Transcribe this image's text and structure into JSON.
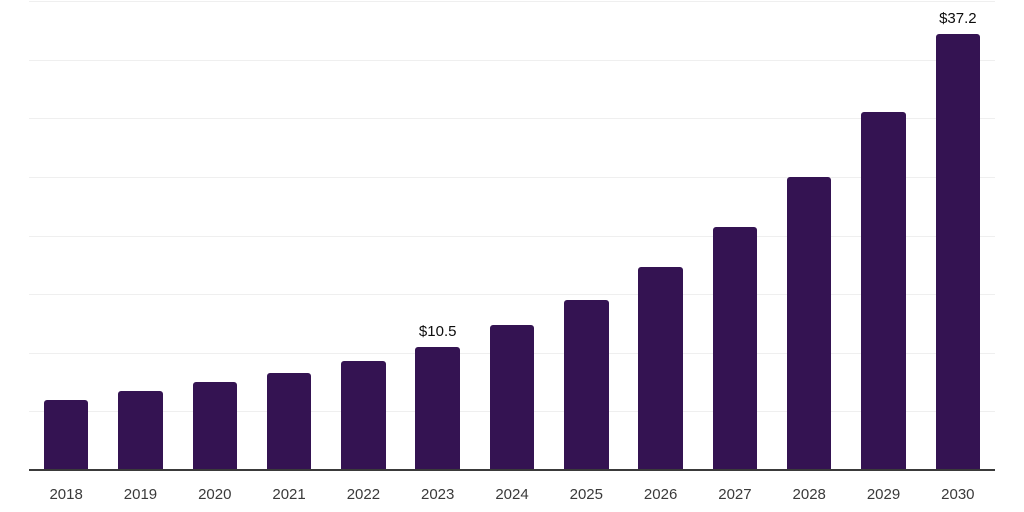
{
  "chart_data": {
    "type": "bar",
    "title": "",
    "categories": [
      "2018",
      "2019",
      "2020",
      "2021",
      "2022",
      "2023",
      "2024",
      "2025",
      "2026",
      "2027",
      "2028",
      "2029",
      "2030"
    ],
    "values": [
      6.0,
      6.7,
      7.5,
      8.3,
      9.3,
      10.5,
      12.4,
      14.5,
      17.3,
      20.7,
      25.0,
      30.5,
      37.2
    ],
    "value_labels": [
      {
        "category": "2023",
        "text": "$10.5"
      },
      {
        "category": "2030",
        "text": "$37.2"
      }
    ],
    "ylim": [
      0,
      40
    ],
    "gridline_step": 5,
    "grid": true,
    "legend": false,
    "y_axis_labels_visible": false,
    "colors": {
      "bar": "#341352",
      "gridline": "#efefef",
      "axis_line": "#3a3a3a",
      "tick_label": "#3a3a3a",
      "value_label": "#0d0d0d"
    }
  }
}
